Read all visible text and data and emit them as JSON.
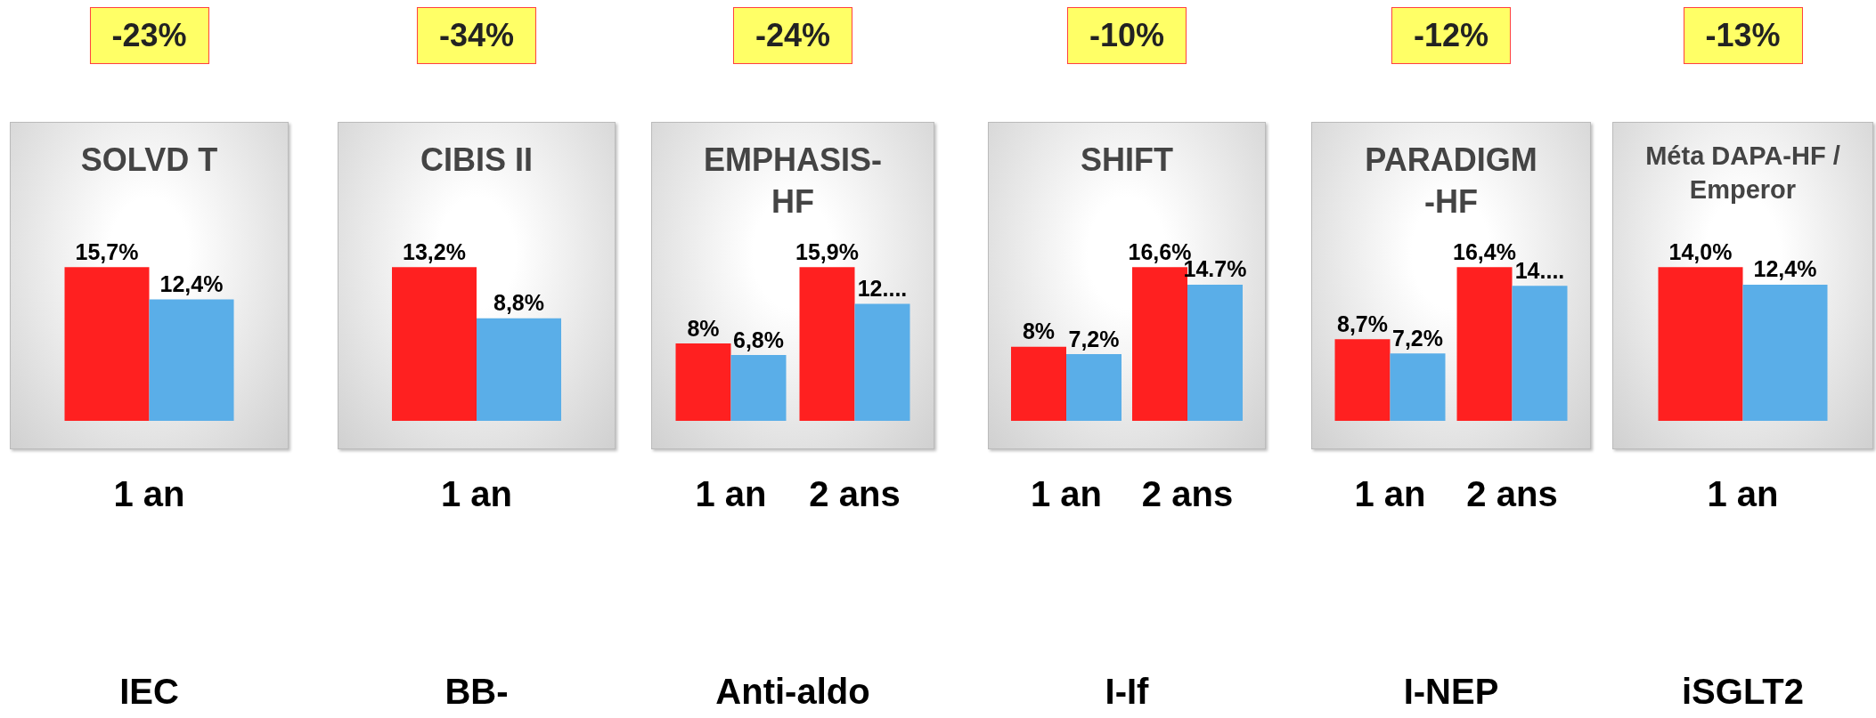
{
  "chart_data": [
    {
      "type": "bar",
      "title": "SOLVD T",
      "xlabel": "IEC",
      "annotations": [
        "-23%"
      ],
      "categories": [
        "1 an"
      ],
      "series": [
        {
          "color": "#ff2020",
          "values": [
            15.7
          ],
          "value_labels": [
            "15,7%"
          ]
        },
        {
          "color": "#5aaee8",
          "values": [
            12.4
          ],
          "value_labels": [
            "12,4%"
          ]
        }
      ]
    },
    {
      "type": "bar",
      "title": "CIBIS II",
      "xlabel": "BB-",
      "annotations": [
        "-34%"
      ],
      "categories": [
        "1 an"
      ],
      "series": [
        {
          "color": "#ff2020",
          "values": [
            13.2
          ],
          "value_labels": [
            "13,2%"
          ]
        },
        {
          "color": "#5aaee8",
          "values": [
            8.8
          ],
          "value_labels": [
            "8,8%"
          ]
        }
      ]
    },
    {
      "type": "bar",
      "title": "EMPHASIS-HF",
      "xlabel": "Anti-aldo",
      "annotations": [
        "-24%"
      ],
      "categories": [
        "1 an",
        "2 ans"
      ],
      "series": [
        {
          "color": "#ff2020",
          "values": [
            8,
            15.9
          ],
          "value_labels": [
            "8%",
            "15,9%"
          ]
        },
        {
          "color": "#5aaee8",
          "values": [
            6.8,
            12.1
          ],
          "value_labels": [
            "6,8%",
            "12...."
          ]
        }
      ]
    },
    {
      "type": "bar",
      "title": "SHIFT",
      "xlabel": "I-If",
      "annotations": [
        "-10%"
      ],
      "categories": [
        "1 an",
        "2 ans"
      ],
      "series": [
        {
          "color": "#ff2020",
          "values": [
            8,
            16.6
          ],
          "value_labels": [
            "8%",
            "16,6%"
          ]
        },
        {
          "color": "#5aaee8",
          "values": [
            7.2,
            14.7
          ],
          "value_labels": [
            "7,2%",
            "14.7%"
          ]
        }
      ]
    },
    {
      "type": "bar",
      "title": "PARADIGM-HF",
      "xlabel": "I-NEP",
      "annotations": [
        "-12%"
      ],
      "categories": [
        "1 an",
        "2 ans"
      ],
      "series": [
        {
          "color": "#ff2020",
          "values": [
            8.7,
            16.4
          ],
          "value_labels": [
            "8,7%",
            "16,4%"
          ]
        },
        {
          "color": "#5aaee8",
          "values": [
            7.2,
            14.4
          ],
          "value_labels": [
            "7,2%",
            "14...."
          ]
        }
      ]
    },
    {
      "type": "bar",
      "title": "Méta DAPA-HF / Emperor",
      "xlabel": "iSGLT2",
      "annotations": [
        "-13%"
      ],
      "categories": [
        "1 an"
      ],
      "series": [
        {
          "color": "#ff2020",
          "values": [
            14.0
          ],
          "value_labels": [
            "14,0%"
          ]
        },
        {
          "color": "#5aaee8",
          "values": [
            12.4
          ],
          "value_labels": [
            "12,4%"
          ]
        }
      ]
    }
  ]
}
